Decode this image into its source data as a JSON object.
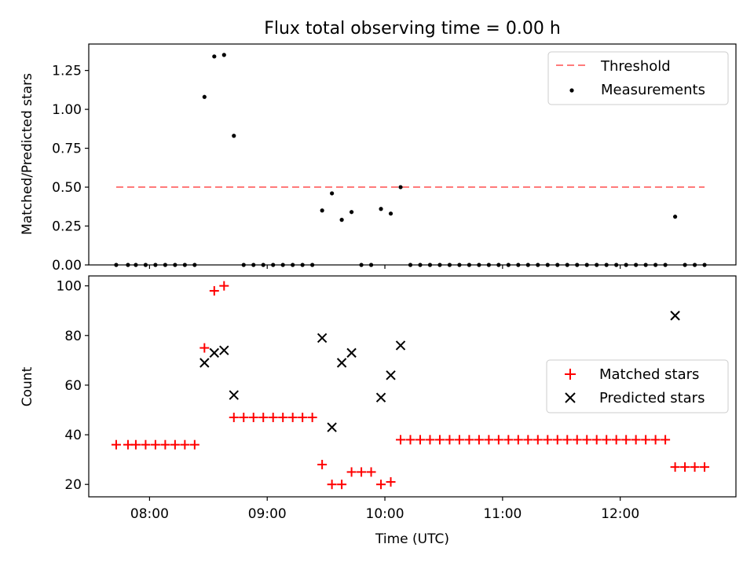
{
  "chart_data": [
    {
      "type": "scatter",
      "title": "Flux total observing time = 0.00 h",
      "ylabel": "Matched/Predicted stars",
      "xlabel": "",
      "ylim": [
        0,
        1.42
      ],
      "yticks": [
        "0.00",
        "0.25",
        "0.50",
        "0.75",
        "1.00",
        "1.25"
      ],
      "legend_position": "top-right",
      "threshold": {
        "name": "Threshold",
        "value": 0.5,
        "x_start": "07:43",
        "x_end": "12:43",
        "color": "#ff7a7a"
      },
      "series": [
        {
          "name": "Measurements",
          "marker": "dot",
          "color": "#000000",
          "points": [
            [
              "07:43",
              0
            ],
            [
              "07:49",
              0
            ],
            [
              "07:53",
              0
            ],
            [
              "07:58",
              0
            ],
            [
              "08:03",
              0
            ],
            [
              "08:08",
              0
            ],
            [
              "08:13",
              0
            ],
            [
              "08:18",
              0
            ],
            [
              "08:23",
              0
            ],
            [
              "08:28",
              1.08
            ],
            [
              "08:33",
              1.34
            ],
            [
              "08:38",
              1.35
            ],
            [
              "08:43",
              0.83
            ],
            [
              "08:48",
              0
            ],
            [
              "08:53",
              0
            ],
            [
              "08:58",
              0
            ],
            [
              "09:03",
              0
            ],
            [
              "09:08",
              0
            ],
            [
              "09:13",
              0
            ],
            [
              "09:18",
              0
            ],
            [
              "09:23",
              0
            ],
            [
              "09:28",
              0.35
            ],
            [
              "09:33",
              0.46
            ],
            [
              "09:38",
              0.29
            ],
            [
              "09:43",
              0.34
            ],
            [
              "09:48",
              0
            ],
            [
              "09:53",
              0
            ],
            [
              "09:58",
              0.36
            ],
            [
              "10:03",
              0.33
            ],
            [
              "10:08",
              0.5
            ],
            [
              "10:13",
              0
            ],
            [
              "10:18",
              0
            ],
            [
              "10:23",
              0
            ],
            [
              "10:28",
              0
            ],
            [
              "10:33",
              0
            ],
            [
              "10:38",
              0
            ],
            [
              "10:43",
              0
            ],
            [
              "10:48",
              0
            ],
            [
              "10:53",
              0
            ],
            [
              "10:58",
              0
            ],
            [
              "11:03",
              0
            ],
            [
              "11:08",
              0
            ],
            [
              "11:13",
              0
            ],
            [
              "11:18",
              0
            ],
            [
              "11:23",
              0
            ],
            [
              "11:28",
              0
            ],
            [
              "11:33",
              0
            ],
            [
              "11:38",
              0
            ],
            [
              "11:43",
              0
            ],
            [
              "11:48",
              0
            ],
            [
              "11:53",
              0
            ],
            [
              "11:58",
              0
            ],
            [
              "12:03",
              0
            ],
            [
              "12:08",
              0
            ],
            [
              "12:13",
              0
            ],
            [
              "12:18",
              0
            ],
            [
              "12:23",
              0
            ],
            [
              "12:28",
              0.31
            ],
            [
              "12:33",
              0
            ],
            [
              "12:38",
              0
            ],
            [
              "12:43",
              0
            ]
          ]
        }
      ]
    },
    {
      "type": "scatter",
      "title": "",
      "ylabel": "Count",
      "xlabel": "Time (UTC)",
      "ylim": [
        15,
        104
      ],
      "yticks": [
        "20",
        "40",
        "60",
        "80",
        "100"
      ],
      "xlim": [
        "07:29",
        "12:59"
      ],
      "xticks": [
        "08:00",
        "09:00",
        "10:00",
        "11:00",
        "12:00"
      ],
      "legend_position": "center-right",
      "series": [
        {
          "name": "Matched stars",
          "marker": "plus",
          "color": "#ff0000",
          "points": [
            [
              "07:43",
              36
            ],
            [
              "07:49",
              36
            ],
            [
              "07:53",
              36
            ],
            [
              "07:58",
              36
            ],
            [
              "08:03",
              36
            ],
            [
              "08:08",
              36
            ],
            [
              "08:13",
              36
            ],
            [
              "08:18",
              36
            ],
            [
              "08:23",
              36
            ],
            [
              "08:28",
              75
            ],
            [
              "08:33",
              98
            ],
            [
              "08:38",
              100
            ],
            [
              "08:43",
              47
            ],
            [
              "08:48",
              47
            ],
            [
              "08:53",
              47
            ],
            [
              "08:58",
              47
            ],
            [
              "09:03",
              47
            ],
            [
              "09:08",
              47
            ],
            [
              "09:13",
              47
            ],
            [
              "09:18",
              47
            ],
            [
              "09:23",
              47
            ],
            [
              "09:28",
              28
            ],
            [
              "09:33",
              20
            ],
            [
              "09:38",
              20
            ],
            [
              "09:43",
              25
            ],
            [
              "09:48",
              25
            ],
            [
              "09:53",
              25
            ],
            [
              "09:58",
              20
            ],
            [
              "10:03",
              21
            ],
            [
              "10:08",
              38
            ],
            [
              "10:13",
              38
            ],
            [
              "10:18",
              38
            ],
            [
              "10:23",
              38
            ],
            [
              "10:28",
              38
            ],
            [
              "10:33",
              38
            ],
            [
              "10:38",
              38
            ],
            [
              "10:43",
              38
            ],
            [
              "10:48",
              38
            ],
            [
              "10:53",
              38
            ],
            [
              "10:58",
              38
            ],
            [
              "11:03",
              38
            ],
            [
              "11:08",
              38
            ],
            [
              "11:13",
              38
            ],
            [
              "11:18",
              38
            ],
            [
              "11:23",
              38
            ],
            [
              "11:28",
              38
            ],
            [
              "11:33",
              38
            ],
            [
              "11:38",
              38
            ],
            [
              "11:43",
              38
            ],
            [
              "11:48",
              38
            ],
            [
              "11:53",
              38
            ],
            [
              "11:58",
              38
            ],
            [
              "12:03",
              38
            ],
            [
              "12:08",
              38
            ],
            [
              "12:13",
              38
            ],
            [
              "12:18",
              38
            ],
            [
              "12:23",
              38
            ],
            [
              "12:28",
              27
            ],
            [
              "12:33",
              27
            ],
            [
              "12:38",
              27
            ],
            [
              "12:43",
              27
            ]
          ]
        },
        {
          "name": "Predicted stars",
          "marker": "x",
          "color": "#000000",
          "points": [
            [
              "08:28",
              69
            ],
            [
              "08:33",
              73
            ],
            [
              "08:38",
              74
            ],
            [
              "08:43",
              56
            ],
            [
              "09:28",
              79
            ],
            [
              "09:33",
              43
            ],
            [
              "09:38",
              69
            ],
            [
              "09:43",
              73
            ],
            [
              "09:58",
              55
            ],
            [
              "10:03",
              64
            ],
            [
              "10:08",
              76
            ],
            [
              "12:28",
              88
            ]
          ]
        }
      ]
    }
  ]
}
